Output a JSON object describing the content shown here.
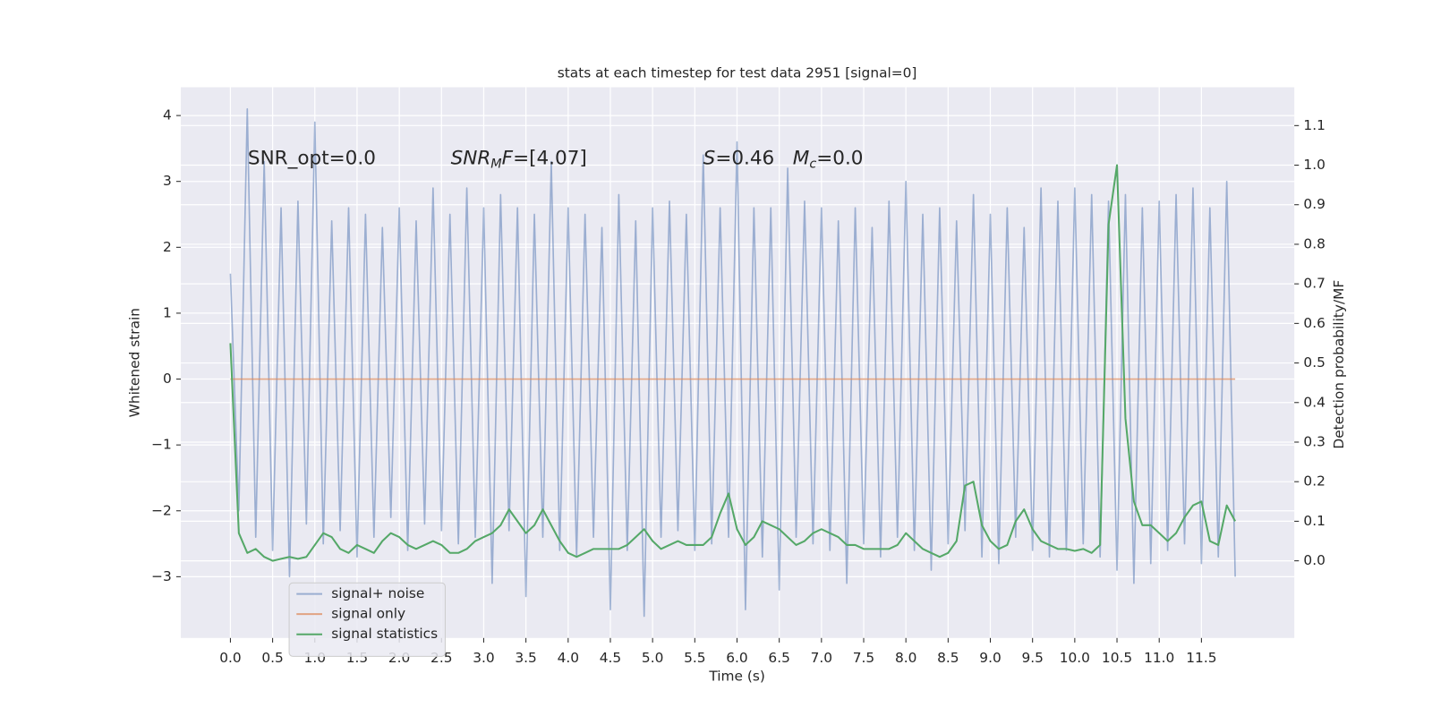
{
  "chart_data": {
    "type": "line",
    "title": "stats at each timestep for test data 2951 [signal=0]",
    "xlabel": "Time (s)",
    "ylabel": "Whitened strain",
    "y2label": "Detection probability/MF",
    "annotations": [
      [
        {
          "text": "SNR_opt=0.0",
          "style": "normal"
        }
      ],
      [
        {
          "text": "SNR",
          "style": "italic"
        },
        {
          "text": "M",
          "style": "italic-sub"
        },
        {
          "text": "F",
          "style": "italic"
        },
        {
          "text": "=[4.07]",
          "style": "normal"
        }
      ],
      [
        {
          "text": "S",
          "style": "italic"
        },
        {
          "text": "=0.46   ",
          "style": "normal"
        },
        {
          "text": "M",
          "style": "italic"
        },
        {
          "text": "c",
          "style": "italic-sub"
        },
        {
          "text": "=0.0",
          "style": "normal"
        }
      ]
    ],
    "x": [
      0.0,
      0.1,
      0.2,
      0.3,
      0.4,
      0.5,
      0.6,
      0.7,
      0.8,
      0.9,
      1.0,
      1.1,
      1.2,
      1.3,
      1.4,
      1.5,
      1.6,
      1.7,
      1.8,
      1.9,
      2.0,
      2.1,
      2.2,
      2.3,
      2.4,
      2.5,
      2.6,
      2.7,
      2.8,
      2.9,
      3.0,
      3.1,
      3.2,
      3.3,
      3.4,
      3.5,
      3.6,
      3.7,
      3.8,
      3.9,
      4.0,
      4.1,
      4.2,
      4.3,
      4.4,
      4.5,
      4.6,
      4.7,
      4.8,
      4.9,
      5.0,
      5.1,
      5.2,
      5.3,
      5.4,
      5.5,
      5.6,
      5.7,
      5.8,
      5.9,
      6.0,
      6.1,
      6.2,
      6.3,
      6.4,
      6.5,
      6.6,
      6.7,
      6.8,
      6.9,
      7.0,
      7.1,
      7.2,
      7.3,
      7.4,
      7.5,
      7.6,
      7.7,
      7.8,
      7.9,
      8.0,
      8.1,
      8.2,
      8.3,
      8.4,
      8.5,
      8.6,
      8.7,
      8.8,
      8.9,
      9.0,
      9.1,
      9.2,
      9.3,
      9.4,
      9.5,
      9.6,
      9.7,
      9.8,
      9.9,
      10.0,
      10.1,
      10.2,
      10.3,
      10.4,
      10.5,
      10.6,
      10.7,
      10.8,
      10.9,
      11.0,
      11.1,
      11.2,
      11.3,
      11.4,
      11.5,
      11.6,
      11.7,
      11.8,
      11.9
    ],
    "series": [
      {
        "name": "signal+ noise",
        "color": "#4c72b0",
        "opacity": 0.5,
        "axis": "y",
        "values": [
          1.6,
          -2.0,
          4.1,
          -2.4,
          3.3,
          -2.6,
          2.6,
          -3.0,
          2.7,
          -2.2,
          3.9,
          -2.5,
          2.4,
          -2.3,
          2.6,
          -2.7,
          2.5,
          -2.4,
          2.3,
          -2.1,
          2.6,
          -2.6,
          2.4,
          -2.2,
          2.9,
          -2.3,
          2.5,
          -2.5,
          2.9,
          -2.4,
          2.6,
          -3.1,
          2.8,
          -2.3,
          2.6,
          -3.3,
          2.5,
          -2.4,
          3.3,
          -2.6,
          2.6,
          -2.7,
          2.5,
          -2.4,
          2.3,
          -3.5,
          2.8,
          -2.6,
          2.4,
          -3.6,
          2.6,
          -2.4,
          2.7,
          -2.3,
          2.5,
          -2.6,
          3.4,
          -2.5,
          2.6,
          -2.4,
          3.6,
          -3.5,
          2.6,
          -2.7,
          2.6,
          -3.2,
          3.2,
          -2.4,
          2.7,
          -2.5,
          2.6,
          -2.6,
          2.4,
          -3.1,
          2.6,
          -2.5,
          2.3,
          -2.7,
          2.7,
          -2.4,
          3.0,
          -2.6,
          2.5,
          -2.9,
          2.6,
          -2.5,
          2.4,
          -2.3,
          2.8,
          -2.7,
          2.5,
          -2.8,
          2.6,
          -2.4,
          2.3,
          -2.6,
          2.9,
          -2.7,
          2.7,
          -2.6,
          2.9,
          -2.5,
          2.8,
          -2.7,
          2.7,
          -2.9,
          2.8,
          -3.1,
          2.6,
          -2.8,
          2.7,
          -2.6,
          2.8,
          -2.5,
          2.9,
          -2.8,
          2.6,
          -2.7,
          3.0,
          -3.0
        ]
      },
      {
        "name": "signal only",
        "color": "#dd8452",
        "opacity": 0.7,
        "axis": "y",
        "values": [
          0,
          0,
          0,
          0,
          0,
          0,
          0,
          0,
          0,
          0,
          0,
          0,
          0,
          0,
          0,
          0,
          0,
          0,
          0,
          0,
          0,
          0,
          0,
          0,
          0,
          0,
          0,
          0,
          0,
          0,
          0,
          0,
          0,
          0,
          0,
          0,
          0,
          0,
          0,
          0,
          0,
          0,
          0,
          0,
          0,
          0,
          0,
          0,
          0,
          0,
          0,
          0,
          0,
          0,
          0,
          0,
          0,
          0,
          0,
          0,
          0,
          0,
          0,
          0,
          0,
          0,
          0,
          0,
          0,
          0,
          0,
          0,
          0,
          0,
          0,
          0,
          0,
          0,
          0,
          0,
          0,
          0,
          0,
          0,
          0,
          0,
          0,
          0,
          0,
          0,
          0,
          0,
          0,
          0,
          0,
          0,
          0,
          0,
          0,
          0,
          0,
          0,
          0,
          0,
          0,
          0,
          0,
          0,
          0,
          0,
          0,
          0,
          0,
          0,
          0,
          0,
          0,
          0,
          0,
          0
        ]
      },
      {
        "name": "signal statistics",
        "color": "#55a868",
        "opacity": 1,
        "axis": "y2",
        "values": [
          0.55,
          0.07,
          0.02,
          0.03,
          0.01,
          0.0,
          0.005,
          0.01,
          0.005,
          0.01,
          0.04,
          0.07,
          0.06,
          0.03,
          0.02,
          0.04,
          0.03,
          0.02,
          0.05,
          0.07,
          0.06,
          0.04,
          0.03,
          0.04,
          0.05,
          0.04,
          0.02,
          0.02,
          0.03,
          0.05,
          0.06,
          0.07,
          0.09,
          0.13,
          0.1,
          0.07,
          0.09,
          0.13,
          0.09,
          0.05,
          0.02,
          0.01,
          0.02,
          0.03,
          0.03,
          0.03,
          0.03,
          0.04,
          0.06,
          0.08,
          0.05,
          0.03,
          0.04,
          0.05,
          0.04,
          0.04,
          0.04,
          0.06,
          0.12,
          0.17,
          0.08,
          0.04,
          0.06,
          0.1,
          0.09,
          0.08,
          0.06,
          0.04,
          0.05,
          0.07,
          0.08,
          0.07,
          0.06,
          0.04,
          0.04,
          0.03,
          0.03,
          0.03,
          0.03,
          0.04,
          0.07,
          0.05,
          0.03,
          0.02,
          0.01,
          0.02,
          0.05,
          0.19,
          0.2,
          0.09,
          0.05,
          0.03,
          0.04,
          0.1,
          0.13,
          0.08,
          0.05,
          0.04,
          0.03,
          0.03,
          0.025,
          0.03,
          0.02,
          0.04,
          0.85,
          1.0,
          0.36,
          0.15,
          0.09,
          0.09,
          0.07,
          0.05,
          0.07,
          0.11,
          0.14,
          0.15,
          0.05,
          0.04,
          0.14,
          0.1
        ]
      }
    ],
    "xlim": [
      -0.587,
      12.6
    ],
    "xticks": [
      {
        "value": 0,
        "label": "0.0"
      },
      0.5,
      {
        "value": 1,
        "label": "1.0"
      },
      1.5,
      {
        "value": 2,
        "label": "2.0"
      },
      2.5,
      {
        "value": 3,
        "label": "3.0"
      },
      3.5,
      {
        "value": 4,
        "label": "4.0"
      },
      4.5,
      {
        "value": 5,
        "label": "5.0"
      },
      5.5,
      {
        "value": 6,
        "label": "6.0"
      },
      6.5,
      {
        "value": 7,
        "label": "7.0"
      },
      7.5,
      {
        "value": 8,
        "label": "8.0"
      },
      8.5,
      {
        "value": 9,
        "label": "9.0"
      },
      9.5,
      {
        "value": 10,
        "label": "10.0"
      },
      10.5,
      {
        "value": 11,
        "label": "11.0"
      },
      11.5
    ],
    "ylim": [
      -3.93,
      4.43
    ],
    "yticks": [
      {
        "value": -3,
        "label": "−3"
      },
      {
        "value": -2,
        "label": "−2"
      },
      {
        "value": -1,
        "label": "−1"
      },
      0,
      1,
      2,
      3,
      4
    ],
    "y2lim": [
      -0.195,
      1.197
    ],
    "y2ticks": [
      {
        "value": 0,
        "label": "0.0"
      },
      0.1,
      0.2,
      0.3,
      0.4,
      0.5,
      0.6,
      0.7,
      0.8,
      0.9,
      {
        "value": 1,
        "label": "1.0"
      },
      1.1
    ],
    "grid": true,
    "legend_loc": "lower left",
    "background": "#eaeaf2"
  }
}
